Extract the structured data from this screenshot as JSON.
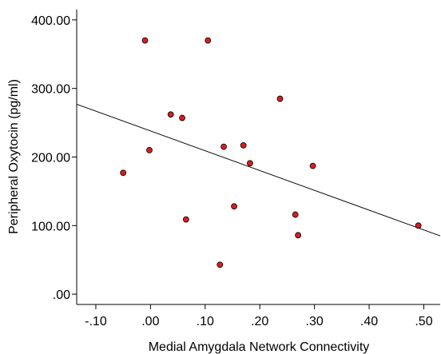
{
  "chart_data": {
    "type": "scatter",
    "title": "",
    "xlabel": "Medial Amygdala Network Connectivity",
    "ylabel": "Peripheral Oxytocin (pg/ml)",
    "xlim": [
      -0.135,
      0.53
    ],
    "ylim": [
      -15,
      415
    ],
    "x_ticks": [
      -0.1,
      0.0,
      0.1,
      0.2,
      0.3,
      0.4,
      0.5
    ],
    "x_tick_labels": [
      "-.10",
      ".00",
      ".10",
      ".20",
      ".30",
      ".40",
      ".50"
    ],
    "y_ticks": [
      0,
      100,
      200,
      300,
      400
    ],
    "y_tick_labels": [
      ".00",
      "100.00",
      "200.00",
      "300.00",
      "400.00"
    ],
    "point_color": "#d81e1e",
    "grid": false,
    "legend": "none",
    "points": [
      {
        "x": -0.05,
        "y": 177
      },
      {
        "x": -0.01,
        "y": 370
      },
      {
        "x": -0.002,
        "y": 210
      },
      {
        "x": 0.037,
        "y": 262
      },
      {
        "x": 0.058,
        "y": 257
      },
      {
        "x": 0.065,
        "y": 109
      },
      {
        "x": 0.105,
        "y": 370
      },
      {
        "x": 0.127,
        "y": 43
      },
      {
        "x": 0.134,
        "y": 215
      },
      {
        "x": 0.153,
        "y": 128
      },
      {
        "x": 0.17,
        "y": 217
      },
      {
        "x": 0.182,
        "y": 191
      },
      {
        "x": 0.237,
        "y": 285
      },
      {
        "x": 0.265,
        "y": 116
      },
      {
        "x": 0.27,
        "y": 86
      },
      {
        "x": 0.297,
        "y": 187
      },
      {
        "x": 0.49,
        "y": 100
      }
    ],
    "fit_line": {
      "x": [
        -0.135,
        0.53
      ],
      "y": [
        277,
        85
      ]
    }
  }
}
